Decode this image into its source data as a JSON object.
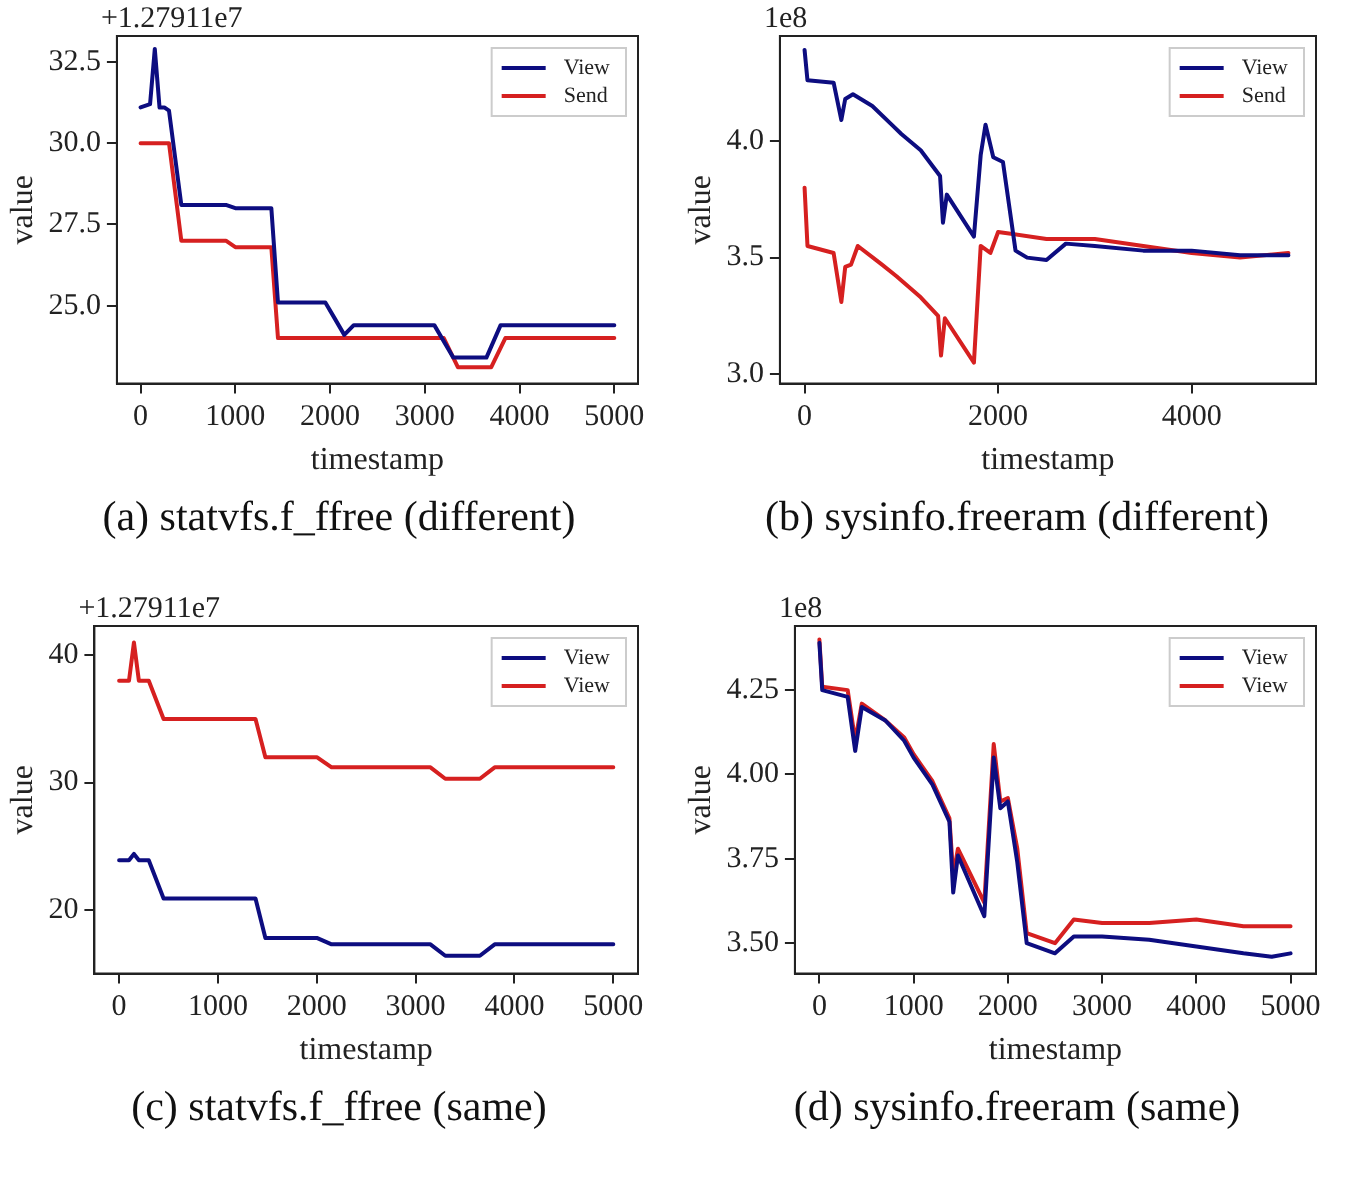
{
  "chart_data": [
    {
      "type": "line",
      "title": "(a) statvfs.f_ffree (different)",
      "xlabel": "timestamp",
      "ylabel": "value",
      "annotations": [
        "+1.27911e7"
      ],
      "legend": "top right",
      "grid": false,
      "marker": "none",
      "line_style": "solid",
      "xlim": [
        -250,
        5250
      ],
      "xticks": [
        0,
        1000,
        2000,
        3000,
        4000,
        5000
      ],
      "ylim": [
        22.6,
        33.3
      ],
      "yticks": [
        {
          "value": 25,
          "label": "25.0"
        },
        {
          "value": 27.5,
          "label": "27.5"
        },
        {
          "value": 30,
          "label": "30.0"
        },
        {
          "value": 32.5,
          "label": "32.5"
        }
      ],
      "series": [
        {
          "name": "View",
          "color": "#0d0d80",
          "x": [
            0,
            100,
            150,
            200,
            250,
            300,
            430,
            900,
            1000,
            1200,
            1380,
            1450,
            1950,
            2050,
            2150,
            2250,
            3100,
            3300,
            3650,
            3800,
            5000
          ],
          "values": [
            31.1,
            31.2,
            32.9,
            31.1,
            31.1,
            31.0,
            28.1,
            28.1,
            28.0,
            28.0,
            28.0,
            25.1,
            25.1,
            24.6,
            24.1,
            24.4,
            24.4,
            23.4,
            23.4,
            24.4,
            24.4
          ]
        },
        {
          "name": "Send",
          "color": "#d62020",
          "x": [
            0,
            300,
            430,
            900,
            1000,
            1380,
            1450,
            3200,
            3350,
            3700,
            3850,
            5000
          ],
          "values": [
            30.0,
            30.0,
            27.0,
            27.0,
            26.8,
            26.8,
            24.0,
            24.0,
            23.1,
            23.1,
            24.0,
            24.0
          ]
        }
      ]
    },
    {
      "type": "line",
      "title": "(b) sysinfo.freeram (different)",
      "xlabel": "timestamp",
      "ylabel": "value",
      "annotations": [
        "1e8"
      ],
      "legend": "top right",
      "grid": false,
      "marker": "none",
      "line_style": "solid",
      "xlim": [
        -255,
        5285
      ],
      "xticks": [
        0,
        2000,
        4000
      ],
      "ylim": [
        2.96,
        4.45
      ],
      "yticks": [
        {
          "value": 3,
          "label": "3.0"
        },
        {
          "value": 3.5,
          "label": "3.5"
        },
        {
          "value": 4,
          "label": "4.0"
        }
      ],
      "series": [
        {
          "name": "View",
          "color": "#0d0d80",
          "x": [
            0,
            30,
            300,
            380,
            420,
            500,
            700,
            900,
            1000,
            1200,
            1400,
            1430,
            1470,
            1750,
            1820,
            1870,
            1950,
            2050,
            2180,
            2300,
            2500,
            2700,
            3000,
            3500,
            4000,
            4500,
            5000
          ],
          "values": [
            4.39,
            4.26,
            4.25,
            4.09,
            4.18,
            4.2,
            4.15,
            4.07,
            4.03,
            3.96,
            3.85,
            3.65,
            3.77,
            3.59,
            3.94,
            4.07,
            3.93,
            3.91,
            3.53,
            3.5,
            3.49,
            3.56,
            3.55,
            3.53,
            3.53,
            3.51,
            3.51
          ]
        },
        {
          "name": "Send",
          "color": "#d62020",
          "x": [
            0,
            30,
            300,
            380,
            420,
            480,
            550,
            800,
            950,
            1200,
            1380,
            1410,
            1450,
            1750,
            1820,
            1920,
            2000,
            2500,
            3000,
            3500,
            4000,
            4500,
            5000
          ],
          "values": [
            3.8,
            3.55,
            3.52,
            3.31,
            3.46,
            3.47,
            3.55,
            3.47,
            3.42,
            3.33,
            3.25,
            3.08,
            3.24,
            3.05,
            3.55,
            3.52,
            3.61,
            3.58,
            3.58,
            3.55,
            3.52,
            3.5,
            3.52
          ]
        }
      ]
    },
    {
      "type": "line",
      "title": "(c) statvfs.f_ffree (same)",
      "xlabel": "timestamp",
      "ylabel": "value",
      "annotations": [
        "+1.27911e7"
      ],
      "legend": "top right",
      "grid": false,
      "marker": "none",
      "line_style": "solid",
      "xlim": [
        -250,
        5250
      ],
      "xticks": [
        0,
        1000,
        2000,
        3000,
        4000,
        5000
      ],
      "ylim": [
        15,
        42.3
      ],
      "yticks": [
        20,
        30,
        40
      ],
      "series": [
        {
          "name": "View",
          "color": "#0d0d80",
          "x": [
            0,
            100,
            150,
            200,
            300,
            450,
            1380,
            1480,
            2000,
            2150,
            3150,
            3300,
            3650,
            3800,
            5000
          ],
          "values": [
            23.9,
            23.9,
            24.4,
            23.9,
            23.9,
            20.9,
            20.9,
            17.8,
            17.8,
            17.3,
            17.3,
            16.4,
            16.4,
            17.3,
            17.3
          ]
        },
        {
          "name": "View",
          "color": "#d62020",
          "x": [
            0,
            100,
            150,
            200,
            300,
            450,
            1380,
            1480,
            2000,
            2150,
            3150,
            3300,
            3650,
            3800,
            5000
          ],
          "values": [
            38.0,
            38.0,
            41.0,
            38.0,
            38.0,
            35.0,
            35.0,
            32.0,
            32.0,
            31.2,
            31.2,
            30.3,
            30.3,
            31.2,
            31.2
          ]
        }
      ]
    },
    {
      "type": "line",
      "title": "(d) sysinfo.freeram (same)",
      "xlabel": "timestamp",
      "ylabel": "value",
      "annotations": [
        "1e8"
      ],
      "legend": "top right",
      "grid": false,
      "marker": "none",
      "line_style": "solid",
      "xlim": [
        -260,
        5270
      ],
      "xticks": [
        0,
        1000,
        2000,
        3000,
        4000,
        5000
      ],
      "ylim": [
        3.41,
        4.44
      ],
      "yticks": [
        {
          "value": 3.5,
          "label": "3.50"
        },
        {
          "value": 3.75,
          "label": "3.75"
        },
        {
          "value": 4,
          "label": "4.00"
        },
        {
          "value": 4.25,
          "label": "4.25"
        }
      ],
      "series": [
        {
          "name": "View",
          "color": "#0d0d80",
          "x": [
            0,
            30,
            300,
            380,
            450,
            700,
            900,
            1000,
            1200,
            1380,
            1420,
            1470,
            1750,
            1850,
            1920,
            2000,
            2100,
            2200,
            2500,
            2700,
            3000,
            3500,
            4000,
            4500,
            4800,
            5000
          ],
          "values": [
            4.39,
            4.25,
            4.23,
            4.07,
            4.2,
            4.16,
            4.1,
            4.05,
            3.97,
            3.86,
            3.65,
            3.76,
            3.58,
            4.05,
            3.9,
            3.92,
            3.74,
            3.5,
            3.47,
            3.52,
            3.52,
            3.51,
            3.49,
            3.47,
            3.46,
            3.47
          ]
        },
        {
          "name": "View",
          "color": "#d62020",
          "x": [
            0,
            30,
            300,
            380,
            450,
            700,
            900,
            1000,
            1200,
            1380,
            1420,
            1470,
            1750,
            1850,
            1920,
            2000,
            2100,
            2200,
            2500,
            2700,
            3000,
            3500,
            4000,
            4500,
            5000
          ],
          "values": [
            4.4,
            4.26,
            4.25,
            4.1,
            4.21,
            4.16,
            4.11,
            4.06,
            3.98,
            3.87,
            3.7,
            3.78,
            3.62,
            4.09,
            3.92,
            3.93,
            3.78,
            3.53,
            3.5,
            3.57,
            3.56,
            3.56,
            3.57,
            3.55,
            3.55
          ]
        }
      ]
    }
  ]
}
